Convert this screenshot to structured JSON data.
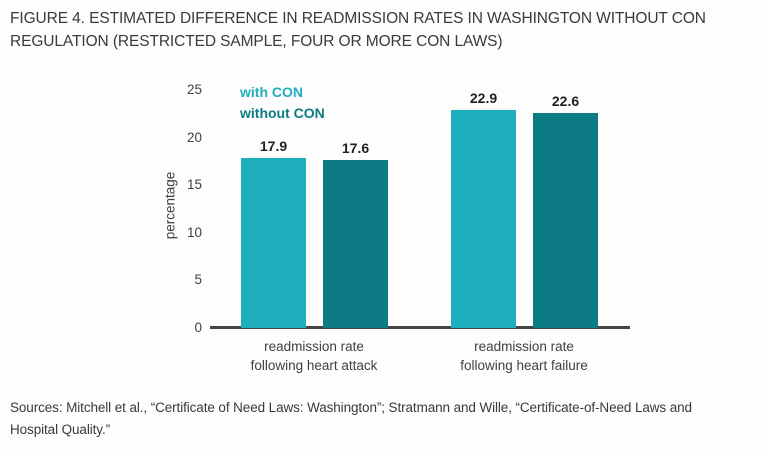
{
  "title_lines": [
    "FIGURE 4. ESTIMATED DIFFERENCE IN READMISSION RATES IN WASHINGTON WITHOUT CON",
    "REGULATION (RESTRICTED SAMPLE, FOUR OR MORE CON LAWS)"
  ],
  "sources_lines": [
    "Sources: Mitchell et al., “Certificate of Need Laws: Washington”; Stratmann and Wille, “Certificate-of-Need Laws and",
    "Hospital Quality.”"
  ],
  "chart_data": {
    "type": "bar",
    "categories": [
      "readmission rate\nfollowing heart attack",
      "readmission rate\nfollowing heart failure"
    ],
    "series": [
      {
        "name": "with CON",
        "color": "#1FAEBC",
        "values": [
          17.9,
          22.9
        ]
      },
      {
        "name": "without CON",
        "color": "#0C7B83",
        "values": [
          17.6,
          22.6
        ]
      }
    ],
    "ylabel": "percentage",
    "xlabel": "",
    "ylim": [
      0,
      25
    ],
    "yticks": [
      0,
      5,
      10,
      15,
      20,
      25
    ],
    "grid": false,
    "legend_position": "top-left",
    "value_labels": true,
    "axis_color": "#454545",
    "tick_label_color": "#414042",
    "value_label_color": "#231f20"
  }
}
